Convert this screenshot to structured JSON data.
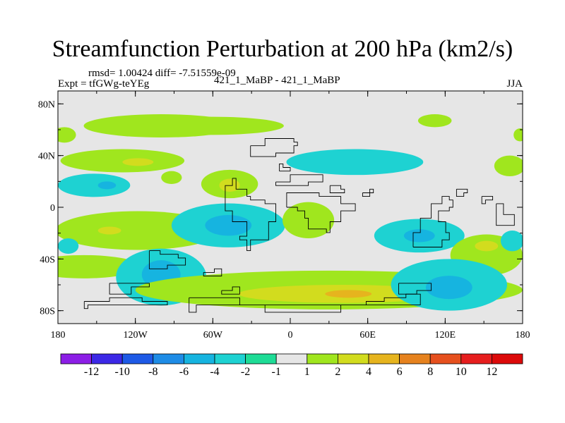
{
  "chart_data": {
    "type": "heatmap",
    "title": "Streamfunction Perturbation at 200 hPa (km2/s)",
    "stats_text": "rmsd= 1.00424 diff= -7.51559e-09",
    "expt_label": "Expt = tfGWg-teYEg",
    "case_label": "421_1_MaBP - 421_1_MaBP",
    "season": "JJA",
    "x_axis": {
      "range": [
        -180,
        180
      ],
      "ticks": [
        -180,
        -120,
        -60,
        0,
        60,
        120,
        180
      ],
      "tick_labels": [
        "180",
        "120W",
        "60W",
        "0",
        "60E",
        "120E",
        "180"
      ]
    },
    "y_axis": {
      "range": [
        -90,
        90
      ],
      "ticks": [
        80,
        40,
        0,
        -40,
        -80
      ],
      "tick_labels": [
        "80N",
        "40N",
        "0",
        "40S",
        "80S"
      ]
    },
    "colorbar": {
      "labels": [
        "-12",
        "-10",
        "-8",
        "-6",
        "-4",
        "-2",
        "-1",
        "1",
        "2",
        "4",
        "6",
        "8",
        "10",
        "12"
      ],
      "colors": [
        "#8c1ee6",
        "#3c28e6",
        "#1e5ae6",
        "#1e8ce6",
        "#16b4e0",
        "#1ed2d2",
        "#1edc96",
        "#e6e6e6",
        "#a0e61e",
        "#d2dc1e",
        "#e6b41e",
        "#e6821e",
        "#e6501e",
        "#e61e1e",
        "#dc0a0a"
      ]
    },
    "blobs": [
      {
        "lon": -175,
        "lat": 56,
        "rx": 9,
        "ry": 6,
        "level": 1
      },
      {
        "lon": -100,
        "lat": 63,
        "rx": 60,
        "ry": 9,
        "level": 1
      },
      {
        "lon": -60,
        "lat": 63,
        "rx": 55,
        "ry": 7,
        "level": 1
      },
      {
        "lon": 112,
        "lat": 67,
        "rx": 13,
        "ry": 5,
        "level": 1
      },
      {
        "lon": 178,
        "lat": 56,
        "rx": 5,
        "ry": 5,
        "level": 1
      },
      {
        "lon": -130,
        "lat": 36,
        "rx": 48,
        "ry": 9,
        "level": 1
      },
      {
        "lon": -118,
        "lat": 35,
        "rx": 12,
        "ry": 3,
        "level": 2
      },
      {
        "lon": -92,
        "lat": 23,
        "rx": 8,
        "ry": 5,
        "level": 1
      },
      {
        "lon": -152,
        "lat": 17,
        "rx": 28,
        "ry": 9,
        "level": -2
      },
      {
        "lon": -142,
        "lat": 17,
        "rx": 7,
        "ry": 3,
        "level": -4
      },
      {
        "lon": -47,
        "lat": 18,
        "rx": 22,
        "ry": 11,
        "level": 1
      },
      {
        "lon": -47,
        "lat": 17,
        "rx": 8,
        "ry": 5,
        "level": 2
      },
      {
        "lon": 50,
        "lat": 35,
        "rx": 53,
        "ry": 10,
        "level": -2
      },
      {
        "lon": 170,
        "lat": 32,
        "rx": 12,
        "ry": 8,
        "level": 1
      },
      {
        "lon": -118,
        "lat": -18,
        "rx": 64,
        "ry": 15,
        "level": 1
      },
      {
        "lon": -140,
        "lat": -18,
        "rx": 9,
        "ry": 3,
        "level": 2
      },
      {
        "lon": -48,
        "lat": -14,
        "rx": 44,
        "ry": 17,
        "level": -2
      },
      {
        "lon": -48,
        "lat": -14,
        "rx": 18,
        "ry": 8,
        "level": -4
      },
      {
        "lon": 14,
        "lat": -10,
        "rx": 20,
        "ry": 14,
        "level": 1
      },
      {
        "lon": 100,
        "lat": -22,
        "rx": 35,
        "ry": 13,
        "level": -2
      },
      {
        "lon": 100,
        "lat": -22,
        "rx": 12,
        "ry": 5,
        "level": -4
      },
      {
        "lon": 152,
        "lat": -37,
        "rx": 28,
        "ry": 16,
        "level": 1
      },
      {
        "lon": 152,
        "lat": -30,
        "rx": 9,
        "ry": 4,
        "level": 2
      },
      {
        "lon": 172,
        "lat": -26,
        "rx": 9,
        "ry": 8,
        "level": -2
      },
      {
        "lon": -172,
        "lat": -30,
        "rx": 8,
        "ry": 6,
        "level": -2
      },
      {
        "lon": -160,
        "lat": -46,
        "rx": 44,
        "ry": 9,
        "level": 1
      },
      {
        "lon": -100,
        "lat": -54,
        "rx": 35,
        "ry": 22,
        "level": -2
      },
      {
        "lon": -100,
        "lat": -52,
        "rx": 15,
        "ry": 11,
        "level": -4
      },
      {
        "lon": 30,
        "lat": -64,
        "rx": 150,
        "ry": 15,
        "level": 1
      },
      {
        "lon": 40,
        "lat": -67,
        "rx": 80,
        "ry": 7,
        "level": 2
      },
      {
        "lon": 45,
        "lat": -67,
        "rx": 18,
        "ry": 3,
        "level": 4
      },
      {
        "lon": 123,
        "lat": -60,
        "rx": 45,
        "ry": 20,
        "level": -2
      },
      {
        "lon": 123,
        "lat": -62,
        "rx": 18,
        "ry": 9,
        "level": -4
      }
    ],
    "coastlines": [
      [
        [
          -32,
          48
        ],
        [
          -20,
          52
        ],
        [
          2,
          50
        ],
        [
          6,
          48
        ],
        [
          2,
          42
        ],
        [
          -10,
          38
        ],
        [
          -25,
          38
        ],
        [
          -32,
          42
        ],
        [
          -32,
          48
        ]
      ],
      [
        [
          -45,
          22
        ],
        [
          -42,
          15
        ],
        [
          -35,
          8
        ],
        [
          -30,
          5
        ],
        [
          -22,
          6
        ],
        [
          -20,
          2
        ],
        [
          -12,
          -4
        ],
        [
          -10,
          -12
        ],
        [
          -16,
          -24
        ],
        [
          -30,
          -34
        ],
        [
          -34,
          -24
        ],
        [
          -40,
          -22
        ],
        [
          -35,
          -10
        ],
        [
          -45,
          -2
        ],
        [
          -50,
          5
        ],
        [
          -50,
          16
        ],
        [
          -45,
          22
        ]
      ],
      [
        [
          -2,
          0
        ],
        [
          6,
          -2
        ],
        [
          10,
          -8
        ],
        [
          14,
          -18
        ],
        [
          28,
          -20
        ],
        [
          32,
          -10
        ],
        [
          40,
          -4
        ],
        [
          50,
          4
        ],
        [
          40,
          8
        ],
        [
          22,
          10
        ],
        [
          8,
          10
        ],
        [
          -2,
          6
        ],
        [
          -2,
          0
        ]
      ],
      [
        [
          -10,
          20
        ],
        [
          0,
          26
        ],
        [
          10,
          24
        ],
        [
          22,
          26
        ],
        [
          24,
          20
        ],
        [
          14,
          18
        ],
        [
          0,
          16
        ],
        [
          -10,
          20
        ]
      ],
      [
        [
          -8,
          28
        ],
        [
          0,
          30
        ],
        [
          -5,
          34
        ],
        [
          -8,
          28
        ]
      ],
      [
        [
          32,
          18
        ],
        [
          40,
          15
        ],
        [
          42,
          10
        ],
        [
          36,
          12
        ],
        [
          32,
          18
        ]
      ],
      [
        [
          55,
          12
        ],
        [
          64,
          14
        ],
        [
          62,
          8
        ],
        [
          55,
          12
        ]
      ],
      [
        [
          95,
          -32
        ],
        [
          108,
          -30
        ],
        [
          118,
          -24
        ],
        [
          124,
          -20
        ],
        [
          120,
          -10
        ],
        [
          116,
          -3
        ],
        [
          124,
          0
        ],
        [
          126,
          5
        ],
        [
          122,
          8
        ],
        [
          118,
          2
        ],
        [
          110,
          -8
        ],
        [
          102,
          -20
        ],
        [
          95,
          -32
        ]
      ],
      [
        [
          128,
          14
        ],
        [
          136,
          12
        ],
        [
          134,
          8
        ],
        [
          128,
          14
        ]
      ],
      [
        [
          148,
          8
        ],
        [
          156,
          6
        ],
        [
          152,
          2
        ],
        [
          148,
          8
        ]
      ],
      [
        [
          160,
          4
        ],
        [
          164,
          -5
        ],
        [
          170,
          -6
        ],
        [
          174,
          -14
        ],
        [
          166,
          -14
        ],
        [
          160,
          -6
        ],
        [
          160,
          4
        ]
      ],
      [
        [
          -78,
          -70
        ],
        [
          -60,
          -70
        ],
        [
          -40,
          -75
        ],
        [
          -20,
          -80
        ],
        [
          20,
          -80
        ],
        [
          40,
          -75
        ],
        [
          60,
          -72
        ],
        [
          72,
          -70
        ],
        [
          90,
          -68
        ],
        [
          100,
          -76
        ],
        [
          -74,
          -80
        ],
        [
          -78,
          -70
        ]
      ],
      [
        [
          -160,
          -72
        ],
        [
          -140,
          -70
        ],
        [
          -115,
          -72
        ],
        [
          -100,
          -72
        ],
        [
          -95,
          -76
        ],
        [
          -158,
          -78
        ],
        [
          -160,
          -72
        ]
      ],
      [
        [
          -110,
          -34
        ],
        [
          -100,
          -36
        ],
        [
          -88,
          -40
        ],
        [
          -80,
          -46
        ],
        [
          -96,
          -48
        ],
        [
          -110,
          -46
        ],
        [
          -110,
          -34
        ]
      ],
      [
        [
          -140,
          -60
        ],
        [
          -125,
          -58
        ],
        [
          -110,
          -62
        ],
        [
          -122,
          -66
        ],
        [
          -140,
          -60
        ]
      ],
      [
        [
          -52,
          -64
        ],
        [
          -44,
          -62
        ],
        [
          -40,
          -66
        ],
        [
          -52,
          -64
        ]
      ],
      [
        [
          84,
          -58
        ],
        [
          100,
          -60
        ],
        [
          110,
          -64
        ],
        [
          98,
          -66
        ],
        [
          84,
          -58
        ]
      ],
      [
        [
          -68,
          -50
        ],
        [
          -58,
          -48
        ],
        [
          -52,
          -52
        ],
        [
          -64,
          -54
        ],
        [
          -68,
          -50
        ]
      ]
    ]
  }
}
